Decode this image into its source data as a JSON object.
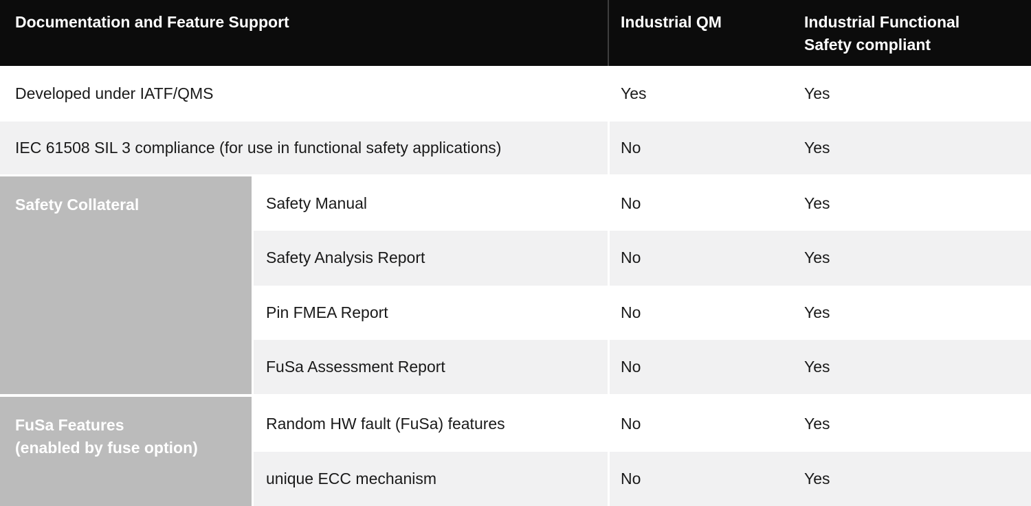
{
  "header": {
    "feature_col": "Documentation and Feature Support",
    "qm_col": "Industrial QM",
    "fusa_col": "Industrial Functional\nSafety compliant"
  },
  "rows": [
    {
      "feature": "Developed under IATF/QMS",
      "industrial_qm": "Yes",
      "industrial_fusa": "Yes"
    },
    {
      "feature": "IEC 61508 SIL 3 compliance (for use in functional safety applications)",
      "industrial_qm": "No",
      "industrial_fusa": "Yes"
    }
  ],
  "sections": [
    {
      "label": "Safety Collateral",
      "rows": [
        {
          "feature": "Safety Manual",
          "industrial_qm": "No",
          "industrial_fusa": "Yes"
        },
        {
          "feature": "Safety Analysis Report",
          "industrial_qm": "No",
          "industrial_fusa": "Yes"
        },
        {
          "feature": "Pin FMEA Report",
          "industrial_qm": "No",
          "industrial_fusa": "Yes"
        },
        {
          "feature": "FuSa Assessment Report",
          "industrial_qm": "No",
          "industrial_fusa": "Yes"
        }
      ]
    },
    {
      "label": "FuSa Features\n(enabled by fuse option)",
      "rows": [
        {
          "feature": "Random HW fault (FuSa) features",
          "industrial_qm": "No",
          "industrial_fusa": "Yes"
        },
        {
          "feature": "unique ECC mechanism",
          "industrial_qm": "No",
          "industrial_fusa": "Yes"
        }
      ]
    }
  ],
  "colors": {
    "header_bg": "#0c0c0c",
    "header_text": "#ffffff",
    "header_divider": "#3e3e3e",
    "row_alt_bg": "#f1f1f2",
    "section_label_bg": "#bbbbbb",
    "section_label_text": "#ffffff",
    "body_text": "#1a1a1a"
  }
}
